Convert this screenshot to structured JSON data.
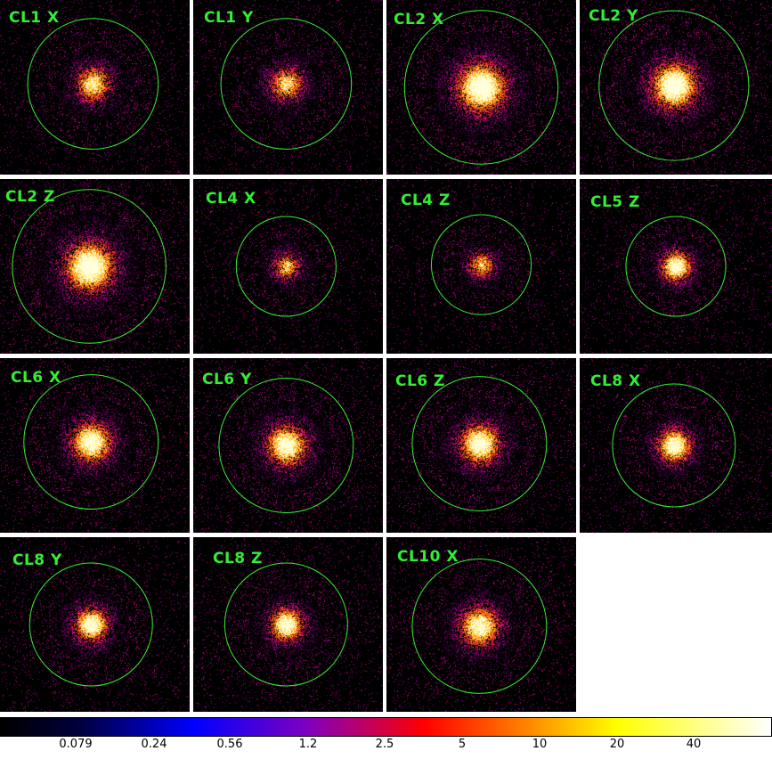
{
  "panels": [
    {
      "label": "CL1 X",
      "intensity": 0.7,
      "spread": 0.55,
      "circle_r": 0.68
    },
    {
      "label": "CL1 Y",
      "intensity": 0.65,
      "spread": 0.55,
      "circle_r": 0.68
    },
    {
      "label": "CL2 X",
      "intensity": 0.95,
      "spread": 0.7,
      "circle_r": 0.8
    },
    {
      "label": "CL2 Y",
      "intensity": 0.95,
      "spread": 0.65,
      "circle_r": 0.78
    },
    {
      "label": "CL2 Z",
      "intensity": 0.95,
      "spread": 0.7,
      "circle_r": 0.8
    },
    {
      "label": "CL4 X",
      "intensity": 0.6,
      "spread": 0.45,
      "circle_r": 0.52
    },
    {
      "label": "CL4 Z",
      "intensity": 0.6,
      "spread": 0.45,
      "circle_r": 0.52
    },
    {
      "label": "CL5 Z",
      "intensity": 0.85,
      "spread": 0.45,
      "circle_r": 0.52
    },
    {
      "label": "CL6 X",
      "intensity": 0.85,
      "spread": 0.6,
      "circle_r": 0.7
    },
    {
      "label": "CL6 Y",
      "intensity": 0.85,
      "spread": 0.6,
      "circle_r": 0.7
    },
    {
      "label": "CL6 Z",
      "intensity": 0.85,
      "spread": 0.6,
      "circle_r": 0.7
    },
    {
      "label": "CL8 X",
      "intensity": 0.85,
      "spread": 0.5,
      "circle_r": 0.64
    },
    {
      "label": "CL8 Y",
      "intensity": 0.85,
      "spread": 0.5,
      "circle_r": 0.64
    },
    {
      "label": "CL8 Z",
      "intensity": 0.85,
      "spread": 0.5,
      "circle_r": 0.64
    },
    {
      "label": "CL10 X",
      "intensity": 0.8,
      "spread": 0.6,
      "circle_r": 0.7
    }
  ],
  "colorbar": {
    "ticks": [
      "0.079",
      "0.24",
      "0.56",
      "1.2",
      "2.5",
      "5",
      "10",
      "20",
      "40"
    ],
    "colors": [
      "#000000",
      "#000050",
      "#0000ff",
      "#8000c0",
      "#ff0000",
      "#ff8000",
      "#ffff00",
      "#ffffff"
    ]
  },
  "circle_color": "#33ee33",
  "label_color": "#33ee33"
}
